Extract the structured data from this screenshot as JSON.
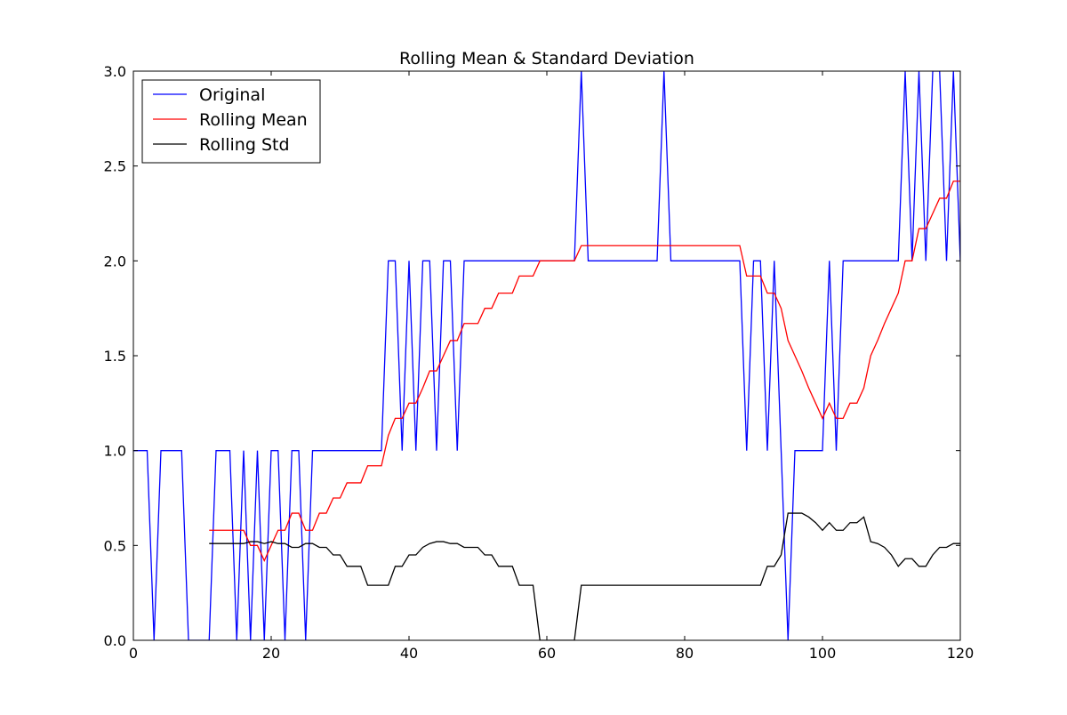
{
  "chart_data": {
    "type": "line",
    "title": "Rolling Mean & Standard Deviation",
    "xlabel": "",
    "ylabel": "",
    "xlim": [
      0,
      120
    ],
    "ylim": [
      0,
      3.0
    ],
    "xticks": [
      0,
      20,
      40,
      60,
      80,
      100,
      120
    ],
    "xtick_labels": [
      "0",
      "20",
      "40",
      "60",
      "80",
      "100",
      "120"
    ],
    "yticks": [
      0,
      0.5,
      1.0,
      1.5,
      2.0,
      2.5,
      3.0
    ],
    "ytick_labels": [
      "0.0",
      "0.5",
      "1.0",
      "1.5",
      "2.0",
      "2.5",
      "3.0"
    ],
    "grid": false,
    "legend_position": "top-left",
    "series": [
      {
        "name": "Original",
        "color": "#0000ff",
        "x": [
          0,
          1,
          2,
          3,
          4,
          5,
          6,
          7,
          8,
          9,
          10,
          11,
          12,
          13,
          14,
          15,
          16,
          17,
          18,
          19,
          20,
          21,
          22,
          23,
          24,
          25,
          26,
          27,
          28,
          29,
          30,
          31,
          32,
          33,
          34,
          35,
          36,
          37,
          38,
          39,
          40,
          41,
          42,
          43,
          44,
          45,
          46,
          47,
          48,
          49,
          50,
          51,
          52,
          53,
          54,
          55,
          56,
          57,
          58,
          59,
          60,
          61,
          62,
          63,
          64,
          65,
          66,
          67,
          68,
          69,
          70,
          71,
          72,
          73,
          74,
          75,
          76,
          77,
          78,
          79,
          80,
          81,
          82,
          83,
          84,
          85,
          86,
          87,
          88,
          89,
          90,
          91,
          92,
          93,
          94,
          95,
          96,
          97,
          98,
          99,
          100,
          101,
          102,
          103,
          104,
          105,
          106,
          107,
          108,
          109,
          110,
          111,
          112,
          113,
          114,
          115,
          116,
          117,
          118,
          119,
          120
        ],
        "y": [
          1,
          1,
          1,
          0,
          1,
          1,
          1,
          1,
          0,
          0,
          0,
          0,
          1,
          1,
          1,
          0,
          1,
          0,
          1,
          0,
          1,
          1,
          0,
          1,
          1,
          0,
          1,
          1,
          1,
          1,
          1,
          1,
          1,
          1,
          1,
          1,
          1,
          2,
          2,
          1,
          2,
          1,
          2,
          2,
          1,
          2,
          2,
          1,
          2,
          2,
          2,
          2,
          2,
          2,
          2,
          2,
          2,
          2,
          2,
          2,
          2,
          2,
          2,
          2,
          2,
          3,
          2,
          2,
          2,
          2,
          2,
          2,
          2,
          2,
          2,
          2,
          2,
          3,
          2,
          2,
          2,
          2,
          2,
          2,
          2,
          2,
          2,
          2,
          2,
          1,
          2,
          2,
          1,
          2,
          1,
          0,
          1,
          1,
          1,
          1,
          1,
          2,
          1,
          2,
          2,
          2,
          2,
          2,
          2,
          2,
          2,
          2,
          3,
          2,
          3,
          2,
          3,
          3,
          2,
          3,
          2
        ]
      },
      {
        "name": "Rolling Mean",
        "color": "#ff0000",
        "x": [
          11,
          12,
          13,
          14,
          15,
          16,
          17,
          18,
          19,
          20,
          21,
          22,
          23,
          24,
          25,
          26,
          27,
          28,
          29,
          30,
          31,
          32,
          33,
          34,
          35,
          36,
          37,
          38,
          39,
          40,
          41,
          42,
          43,
          44,
          45,
          46,
          47,
          48,
          49,
          50,
          51,
          52,
          53,
          54,
          55,
          56,
          57,
          58,
          59,
          60,
          61,
          62,
          63,
          64,
          65,
          66,
          67,
          68,
          69,
          70,
          71,
          72,
          73,
          74,
          75,
          76,
          77,
          78,
          79,
          80,
          81,
          82,
          83,
          84,
          85,
          86,
          87,
          88,
          89,
          90,
          91,
          92,
          93,
          94,
          95,
          96,
          97,
          98,
          99,
          100,
          101,
          102,
          103,
          104,
          105,
          106,
          107,
          108,
          109,
          110,
          111,
          112,
          113,
          114,
          115,
          116,
          117,
          118,
          119,
          120
        ],
        "y": [
          0.58,
          0.58,
          0.58,
          0.58,
          0.58,
          0.58,
          0.5,
          0.5,
          0.42,
          0.5,
          0.58,
          0.58,
          0.67,
          0.67,
          0.58,
          0.58,
          0.67,
          0.67,
          0.75,
          0.75,
          0.83,
          0.83,
          0.83,
          0.92,
          0.92,
          0.92,
          1.08,
          1.17,
          1.17,
          1.25,
          1.25,
          1.33,
          1.42,
          1.42,
          1.5,
          1.58,
          1.58,
          1.67,
          1.67,
          1.67,
          1.75,
          1.75,
          1.83,
          1.83,
          1.83,
          1.92,
          1.92,
          1.92,
          2.0,
          2.0,
          2.0,
          2.0,
          2.0,
          2.0,
          2.08,
          2.08,
          2.08,
          2.08,
          2.08,
          2.08,
          2.08,
          2.08,
          2.08,
          2.08,
          2.08,
          2.08,
          2.08,
          2.08,
          2.08,
          2.08,
          2.08,
          2.08,
          2.08,
          2.08,
          2.08,
          2.08,
          2.08,
          2.08,
          1.92,
          1.92,
          1.92,
          1.83,
          1.83,
          1.75,
          1.58,
          1.5,
          1.42,
          1.33,
          1.25,
          1.17,
          1.25,
          1.17,
          1.17,
          1.25,
          1.25,
          1.33,
          1.5,
          1.58,
          1.67,
          1.75,
          1.83,
          2.0,
          2.0,
          2.17,
          2.17,
          2.25,
          2.33,
          2.33,
          2.42,
          2.42
        ]
      },
      {
        "name": "Rolling Std",
        "color": "#000000",
        "x": [
          11,
          12,
          13,
          14,
          15,
          16,
          17,
          18,
          19,
          20,
          21,
          22,
          23,
          24,
          25,
          26,
          27,
          28,
          29,
          30,
          31,
          32,
          33,
          34,
          35,
          36,
          37,
          38,
          39,
          40,
          41,
          42,
          43,
          44,
          45,
          46,
          47,
          48,
          49,
          50,
          51,
          52,
          53,
          54,
          55,
          56,
          57,
          58,
          59,
          60,
          61,
          62,
          63,
          64,
          65,
          66,
          67,
          68,
          69,
          70,
          71,
          72,
          73,
          74,
          75,
          76,
          77,
          78,
          79,
          80,
          81,
          82,
          83,
          84,
          85,
          86,
          87,
          88,
          89,
          90,
          91,
          92,
          93,
          94,
          95,
          96,
          97,
          98,
          99,
          100,
          101,
          102,
          103,
          104,
          105,
          106,
          107,
          108,
          109,
          110,
          111,
          112,
          113,
          114,
          115,
          116,
          117,
          118,
          119,
          120
        ],
        "y": [
          0.51,
          0.51,
          0.51,
          0.51,
          0.51,
          0.51,
          0.52,
          0.52,
          0.51,
          0.52,
          0.51,
          0.51,
          0.49,
          0.49,
          0.51,
          0.51,
          0.49,
          0.49,
          0.45,
          0.45,
          0.39,
          0.39,
          0.39,
          0.29,
          0.29,
          0.29,
          0.29,
          0.39,
          0.39,
          0.45,
          0.45,
          0.49,
          0.51,
          0.52,
          0.52,
          0.51,
          0.51,
          0.49,
          0.49,
          0.49,
          0.45,
          0.45,
          0.39,
          0.39,
          0.39,
          0.29,
          0.29,
          0.29,
          0.0,
          0.0,
          0.0,
          0.0,
          0.0,
          0.0,
          0.29,
          0.29,
          0.29,
          0.29,
          0.29,
          0.29,
          0.29,
          0.29,
          0.29,
          0.29,
          0.29,
          0.29,
          0.29,
          0.29,
          0.29,
          0.29,
          0.29,
          0.29,
          0.29,
          0.29,
          0.29,
          0.29,
          0.29,
          0.29,
          0.29,
          0.29,
          0.29,
          0.39,
          0.39,
          0.45,
          0.67,
          0.67,
          0.67,
          0.65,
          0.62,
          0.58,
          0.62,
          0.58,
          0.58,
          0.62,
          0.62,
          0.65,
          0.52,
          0.51,
          0.49,
          0.45,
          0.39,
          0.43,
          0.43,
          0.39,
          0.39,
          0.45,
          0.49,
          0.49,
          0.51,
          0.51
        ]
      }
    ]
  }
}
